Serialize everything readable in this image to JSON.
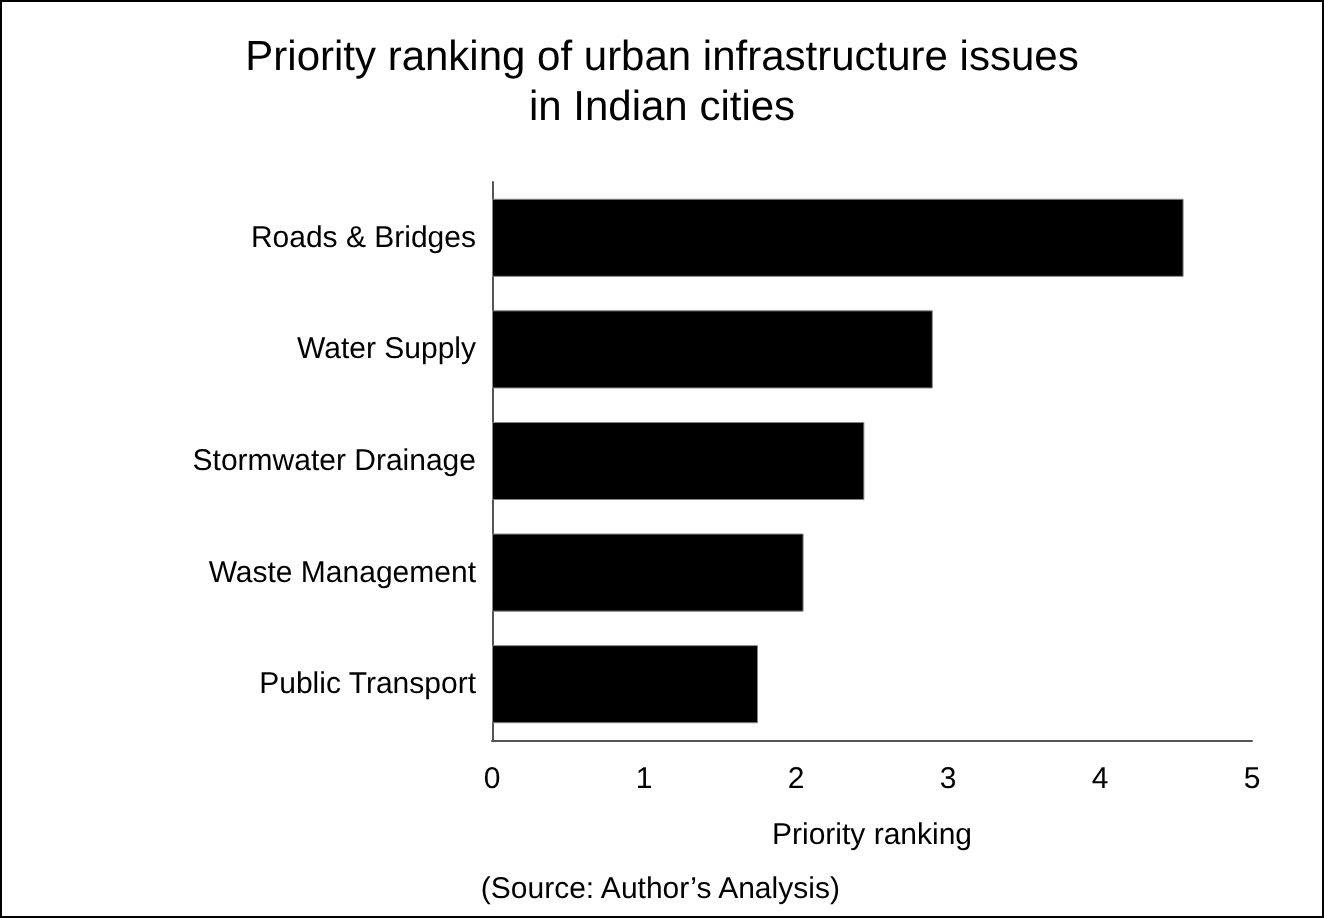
{
  "chart_data": {
    "type": "bar",
    "orientation": "horizontal",
    "title": "Priority ranking of urban infrastructure issues\nin Indian cities",
    "categories": [
      "Roads & Bridges",
      "Water Supply",
      "Stormwater Drainage",
      "Waste Management",
      "Public Transport"
    ],
    "values": [
      4.55,
      2.9,
      2.45,
      2.05,
      1.75
    ],
    "color": "#000000",
    "xlim": [
      0,
      5
    ],
    "xticks": [
      0,
      1,
      2,
      3,
      4,
      5
    ],
    "xlabel": "Priority ranking",
    "grid": false,
    "annotations": [
      "(Source: Author’s Analysis)"
    ]
  }
}
